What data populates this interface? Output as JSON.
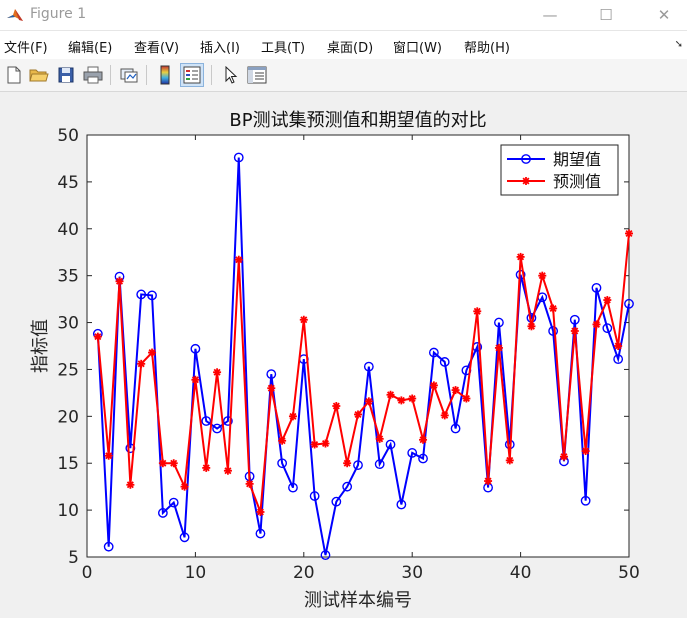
{
  "window": {
    "title": "Figure 1",
    "minimize_glyph": "—",
    "maximize_glyph": "☐",
    "close_glyph": "✕"
  },
  "menu": {
    "items": [
      {
        "label": "文件(F)"
      },
      {
        "label": "编辑(E)"
      },
      {
        "label": "查看(V)"
      },
      {
        "label": "插入(I)"
      },
      {
        "label": "工具(T)"
      },
      {
        "label": "桌面(D)"
      },
      {
        "label": "窗口(W)"
      },
      {
        "label": "帮助(H)"
      }
    ]
  },
  "toolbar": {
    "buttons": [
      {
        "icon": "new-file-icon"
      },
      {
        "icon": "open-folder-icon"
      },
      {
        "icon": "save-icon"
      },
      {
        "icon": "print-icon"
      },
      {
        "icon": "link-plot-icon"
      },
      {
        "icon": "colorbar-icon"
      },
      {
        "icon": "legend-icon",
        "active": true
      },
      {
        "icon": "pointer-icon"
      },
      {
        "icon": "property-inspector-icon"
      }
    ]
  },
  "colors": {
    "expected": "#0000ff",
    "predicted": "#ff0000",
    "axes_bg": "#ffffff",
    "figure_bg": "#f0f0f0"
  },
  "chart_data": {
    "type": "line",
    "title": "BP测试集预测值和期望值的对比",
    "xlabel": "测试样本编号",
    "ylabel": "指标值",
    "xlim": [
      0,
      50
    ],
    "ylim": [
      5,
      50
    ],
    "xticks": [
      0,
      10,
      20,
      30,
      40,
      50
    ],
    "yticks": [
      5,
      10,
      15,
      20,
      25,
      30,
      35,
      40,
      45,
      50
    ],
    "legend_position": "top-right",
    "x": [
      1,
      2,
      3,
      4,
      5,
      6,
      7,
      8,
      9,
      10,
      11,
      12,
      13,
      14,
      15,
      16,
      17,
      18,
      19,
      20,
      21,
      22,
      23,
      24,
      25,
      26,
      27,
      28,
      29,
      30,
      31,
      32,
      33,
      34,
      35,
      36,
      37,
      38,
      39,
      40,
      41,
      42,
      43,
      44,
      45,
      46,
      47,
      48,
      49,
      50
    ],
    "series": [
      {
        "name": "期望值",
        "marker": "circle",
        "color": "#0000ff",
        "values": [
          28.8,
          6.1,
          34.9,
          16.6,
          33.0,
          32.9,
          9.7,
          10.8,
          7.1,
          27.2,
          19.5,
          18.7,
          19.5,
          47.6,
          13.6,
          7.5,
          24.5,
          15.0,
          12.4,
          26.1,
          11.5,
          5.2,
          10.9,
          12.5,
          14.8,
          25.3,
          14.9,
          17.0,
          10.6,
          16.1,
          15.5,
          26.8,
          25.8,
          18.7,
          24.9,
          27.4,
          12.4,
          30.0,
          17.0,
          35.1,
          30.5,
          32.7,
          29.1,
          15.2,
          30.3,
          11.0,
          33.7,
          29.4,
          26.1,
          32.0
        ]
      },
      {
        "name": "预测值",
        "marker": "star",
        "color": "#ff0000",
        "values": [
          28.5,
          15.8,
          34.4,
          12.7,
          25.6,
          26.8,
          15.0,
          15.0,
          12.5,
          23.9,
          14.5,
          24.7,
          14.2,
          36.7,
          12.8,
          9.8,
          23.0,
          17.4,
          20.0,
          30.3,
          17.0,
          17.1,
          21.1,
          15.0,
          20.2,
          21.6,
          17.6,
          22.3,
          21.7,
          21.9,
          17.5,
          23.3,
          20.1,
          22.8,
          21.9,
          31.2,
          13.1,
          27.3,
          15.3,
          37.0,
          29.6,
          35.0,
          31.5,
          15.7,
          29.1,
          16.3,
          29.8,
          32.4,
          27.5,
          39.5
        ]
      }
    ]
  }
}
